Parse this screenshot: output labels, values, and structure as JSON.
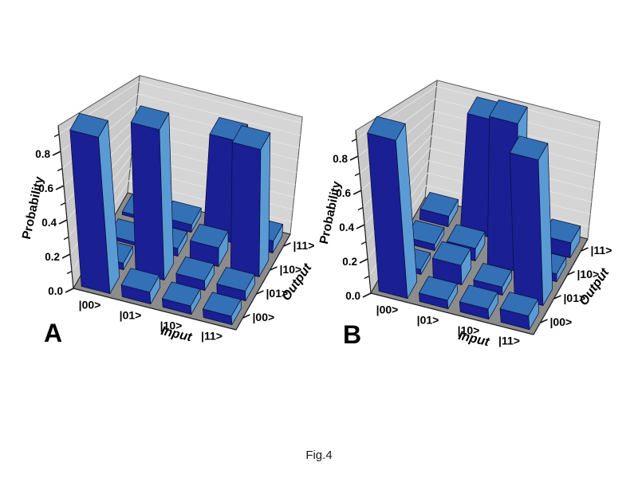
{
  "figure": {
    "caption": "Fig.4"
  },
  "colors": {
    "bar_front": "#1a1f93",
    "bar_side": "#5a9bd3",
    "bar_top": "#3470b5",
    "bar_edge": "#060d38",
    "wall_left": "#cacaca",
    "wall_back": "#d5d5d5",
    "wall_grid": "#e4e4e4",
    "wall_edge": "#555555",
    "floor": "#8c8c8c",
    "floor_edge": "#222222",
    "background": "#ffffff",
    "text": "#000000"
  },
  "chart_data": [
    {
      "type": "bar3d",
      "panel_label": "A",
      "xlabel": "Input",
      "ylabel": "Output",
      "zlabel": "Probability",
      "x_categories": [
        "|00>",
        "|01>",
        "|10>",
        "|11>"
      ],
      "y_categories": [
        "|00>",
        "|01>",
        "|10>",
        "|11>"
      ],
      "z_ticks": [
        "0.0",
        "0.2",
        "0.4",
        "0.6",
        "0.8"
      ],
      "zlim": [
        0,
        1
      ],
      "grid": true,
      "values_by_input": [
        [
          0.93,
          0.04,
          0.02,
          0.02
        ],
        [
          0.07,
          0.93,
          0.05,
          0.05
        ],
        [
          0.05,
          0.06,
          0.12,
          0.68
        ],
        [
          0.05,
          0.06,
          0.82,
          0.08
        ]
      ]
    },
    {
      "type": "bar3d",
      "panel_label": "B",
      "xlabel": "Input",
      "ylabel": "Output",
      "zlabel": "Probability",
      "x_categories": [
        "|00>",
        "|01>",
        "|10>",
        "|11>"
      ],
      "y_categories": [
        "|00>",
        "|01>",
        "|10>",
        "|11>"
      ],
      "z_ticks": [
        "0.0",
        "0.2",
        "0.4",
        "0.6",
        "0.8"
      ],
      "zlim": [
        0,
        1
      ],
      "grid": true,
      "values_by_input": [
        [
          0.94,
          0.03,
          0.04,
          0.07
        ],
        [
          0.05,
          0.12,
          0.08,
          0.78
        ],
        [
          0.06,
          0.05,
          0.95,
          0.06
        ],
        [
          0.08,
          0.9,
          0.05,
          0.1
        ]
      ]
    }
  ]
}
